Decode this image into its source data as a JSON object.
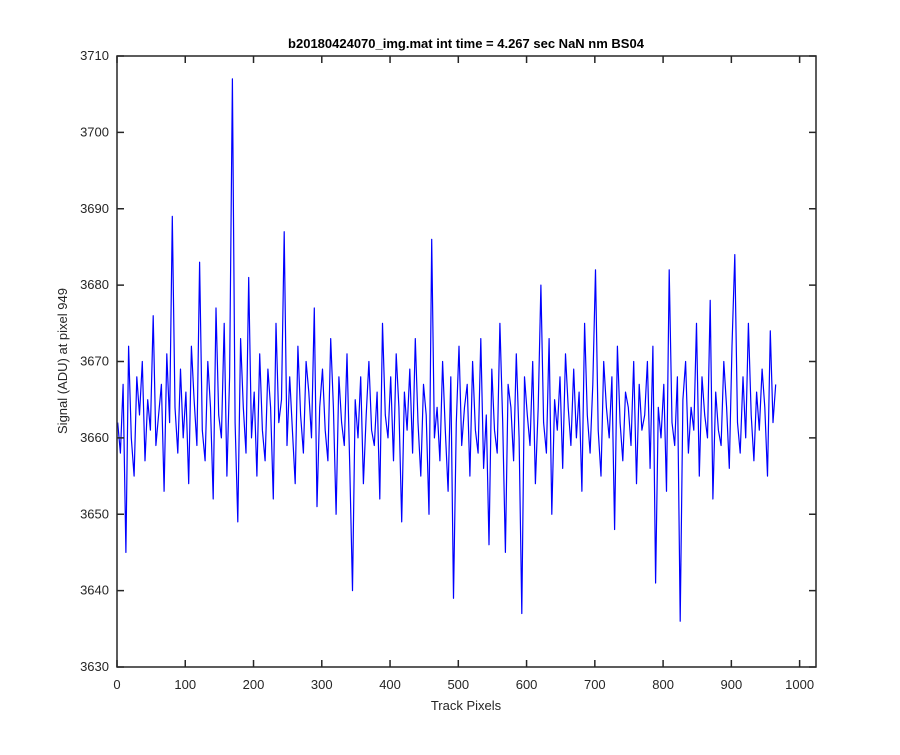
{
  "chart_data": {
    "type": "line",
    "title": "b20180424070_img.mat int time = 4.267 sec  NaN nm BS04",
    "xlabel": "Track Pixels",
    "ylabel": "Signal (ADU) at pixel 949",
    "xlim": [
      0,
      1024
    ],
    "ylim": [
      3630,
      3710
    ],
    "xticks": [
      0,
      100,
      200,
      300,
      400,
      500,
      600,
      700,
      800,
      900,
      1000
    ],
    "yticks": [
      3630,
      3640,
      3650,
      3660,
      3670,
      3680,
      3690,
      3700,
      3710
    ],
    "grid": false,
    "line_color": "#0000ff",
    "series": [
      {
        "x_start": 1,
        "x_step": 4,
        "values": [
          3662,
          3658,
          3667,
          3645,
          3672,
          3660,
          3655,
          3668,
          3663,
          3670,
          3657,
          3665,
          3661,
          3676,
          3659,
          3663,
          3667,
          3653,
          3671,
          3662,
          3689,
          3664,
          3658,
          3669,
          3660,
          3666,
          3654,
          3672,
          3665,
          3659,
          3683,
          3661,
          3657,
          3670,
          3664,
          3652,
          3677,
          3663,
          3660,
          3675,
          3655,
          3668,
          3707,
          3662,
          3649,
          3673,
          3664,
          3658,
          3681,
          3660,
          3666,
          3655,
          3671,
          3661,
          3657,
          3669,
          3664,
          3652,
          3675,
          3662,
          3665,
          3687,
          3659,
          3668,
          3661,
          3654,
          3672,
          3663,
          3658,
          3670,
          3666,
          3660,
          3677,
          3651,
          3664,
          3669,
          3661,
          3657,
          3673,
          3664,
          3650,
          3668,
          3662,
          3659,
          3671,
          3656,
          3640,
          3665,
          3660,
          3668,
          3654,
          3663,
          3670,
          3661,
          3659,
          3666,
          3652,
          3675,
          3663,
          3660,
          3668,
          3657,
          3671,
          3664,
          3649,
          3666,
          3661,
          3669,
          3658,
          3673,
          3662,
          3655,
          3667,
          3663,
          3650,
          3686,
          3660,
          3664,
          3657,
          3670,
          3661,
          3653,
          3668,
          3639,
          3662,
          3672,
          3659,
          3664,
          3667,
          3655,
          3670,
          3661,
          3658,
          3673,
          3656,
          3663,
          3646,
          3669,
          3661,
          3658,
          3675,
          3662,
          3645,
          3667,
          3664,
          3657,
          3671,
          3660,
          3637,
          3668,
          3663,
          3659,
          3670,
          3654,
          3664,
          3680,
          3662,
          3658,
          3673,
          3650,
          3665,
          3661,
          3668,
          3656,
          3671,
          3664,
          3659,
          3669,
          3660,
          3666,
          3653,
          3675,
          3663,
          3658,
          3667,
          3682,
          3661,
          3655,
          3670,
          3664,
          3660,
          3668,
          3648,
          3672,
          3662,
          3657,
          3666,
          3664,
          3659,
          3670,
          3654,
          3667,
          3661,
          3663,
          3670,
          3656,
          3672,
          3641,
          3664,
          3660,
          3667,
          3653,
          3682,
          3662,
          3659,
          3668,
          3636,
          3665,
          3670,
          3658,
          3664,
          3661,
          3675,
          3655,
          3668,
          3663,
          3660,
          3678,
          3652,
          3666,
          3661,
          3659,
          3670,
          3664,
          3656,
          3672,
          3684,
          3662,
          3658,
          3668,
          3660,
          3675,
          3663,
          3657,
          3666,
          3661,
          3669,
          3664,
          3655,
          3674,
          3662,
          3667
        ]
      }
    ]
  }
}
